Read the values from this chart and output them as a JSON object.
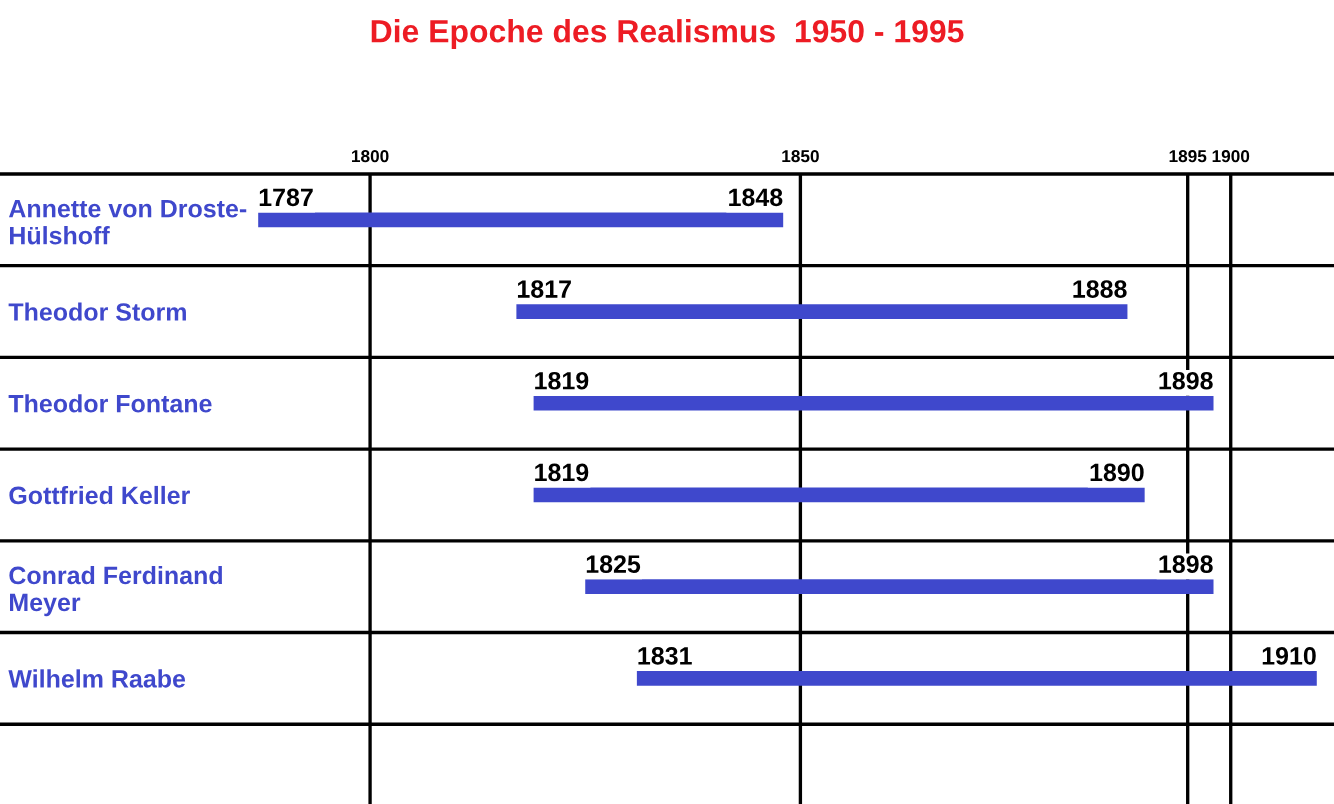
{
  "chart_data": {
    "type": "bar",
    "orientation": "horizontal",
    "title": "Die Epoche des Realismus  1950 - 1995",
    "categories": [
      "Annette von Droste-\nHülshoff",
      "Theodor Storm",
      "Theodor Fontane",
      "Gottfried Keller",
      "Conrad Ferdinand\nMeyer",
      "Wilhelm Raabe"
    ],
    "base": [
      1787,
      1817,
      1819,
      1819,
      1825,
      1831
    ],
    "values": [
      61,
      71,
      79,
      71,
      73,
      79
    ],
    "color": "#3f48cc",
    "xlim": [
      1757,
      1912
    ],
    "xticks": [
      1800,
      1850,
      1895,
      1900
    ],
    "grid": "x",
    "annotations": [
      {
        "text": "1787",
        "x": 1787,
        "y": "Annette von Droste-\nHülshoff"
      },
      {
        "text": "1848",
        "x": 1848,
        "y": "Annette von Droste-\nHülshoff"
      },
      {
        "text": "1817",
        "x": 1817,
        "y": "Theodor Storm"
      },
      {
        "text": "1888",
        "x": 1888,
        "y": "Theodor Storm"
      },
      {
        "text": "1819",
        "x": 1819,
        "y": "Theodor Fontane"
      },
      {
        "text": "1898",
        "x": 1898,
        "y": "Theodor Fontane"
      },
      {
        "text": "1819",
        "x": 1819,
        "y": "Gottfried Keller"
      },
      {
        "text": "1890",
        "x": 1890,
        "y": "Gottfried Keller"
      },
      {
        "text": "1825",
        "x": 1825,
        "y": "Conrad Ferdinand\nMeyer"
      },
      {
        "text": "1898",
        "x": 1898,
        "y": "Conrad Ferdinand\nMeyer"
      },
      {
        "text": "1831",
        "x": 1831,
        "y": "Wilhelm Raabe"
      },
      {
        "text": "1910",
        "x": 1910,
        "y": "Wilhelm Raabe"
      }
    ]
  }
}
